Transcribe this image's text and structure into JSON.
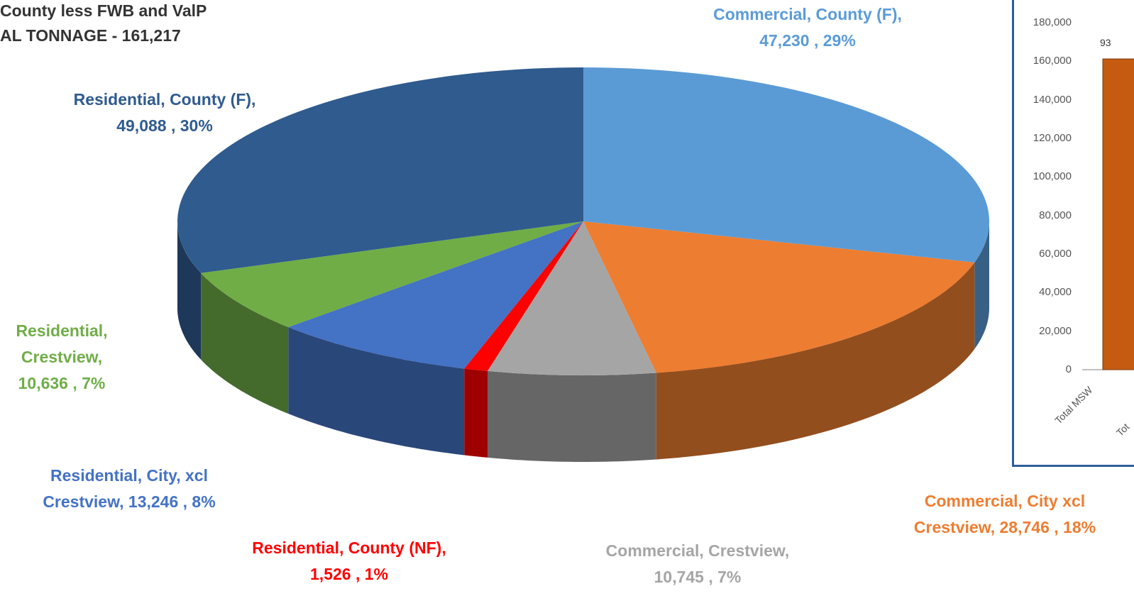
{
  "title_lines": [
    "County less FWB and ValP",
    "AL TONNAGE - 161,217"
  ],
  "chart_data": [
    {
      "type": "pie",
      "title": "County less FWB and ValP",
      "subtitle": "AL TONNAGE - 161,217",
      "slices": [
        {
          "category": "Commercial, County (F)",
          "value": 47230,
          "percent": 29,
          "color": "#5b9bd5",
          "label_lines": [
            "Commercial, County (F),",
            "47,230 , 29%"
          ]
        },
        {
          "category": "Commercial, City xcl Crestview",
          "value": 28746,
          "percent": 18,
          "color": "#ed7d31",
          "label_lines": [
            "Commercial, City xcl",
            "Crestview, 28,746 , 18%"
          ]
        },
        {
          "category": "Commercial, Crestview",
          "value": 10745,
          "percent": 7,
          "color": "#a5a5a5",
          "label_lines": [
            "Commercial, Crestview,",
            "10,745 , 7%"
          ]
        },
        {
          "category": "Residential, County (NF)",
          "value": 1526,
          "percent": 1,
          "color": "#ff0000",
          "label_lines": [
            "Residential, County (NF),",
            "1,526 , 1%"
          ]
        },
        {
          "category": "Residential, City, xcl Crestview",
          "value": 13246,
          "percent": 8,
          "color": "#4472c4",
          "label_lines": [
            "Residential, City, xcl",
            "Crestview, 13,246 , 8%"
          ]
        },
        {
          "category": "Residential, Crestview",
          "value": 10636,
          "percent": 7,
          "color": "#70ad47",
          "label_lines": [
            "Residential,",
            "Crestview,",
            "10,636 , 7%"
          ]
        },
        {
          "category": "Residential, County (F)",
          "value": 49088,
          "percent": 30,
          "color": "#2f5b8e",
          "label_lines": [
            "Residential, County (F),",
            "49,088 , 30%"
          ]
        }
      ]
    },
    {
      "type": "bar",
      "categories": [
        "Total MSW",
        "Tot"
      ],
      "values": [
        161217,
        null
      ],
      "data_labels": [
        "93"
      ],
      "bar_color": "#c55a11",
      "ylim": [
        0,
        180000
      ],
      "yticks": [
        {
          "value": 180000,
          "label": "180,000"
        },
        {
          "value": 160000,
          "label": "160,000"
        },
        {
          "value": 140000,
          "label": "140,000"
        },
        {
          "value": 120000,
          "label": "120,000"
        },
        {
          "value": 100000,
          "label": "100,000"
        },
        {
          "value": 80000,
          "label": "80,000"
        },
        {
          "value": 60000,
          "label": "60,000"
        },
        {
          "value": 40000,
          "label": "40,000"
        },
        {
          "value": 20000,
          "label": "20,000"
        },
        {
          "value": 0,
          "label": "0"
        }
      ]
    }
  ]
}
